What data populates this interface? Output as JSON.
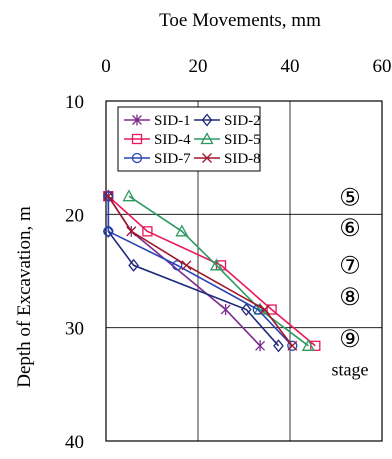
{
  "chart_data": {
    "type": "line",
    "title": "",
    "xlabel": "Toe Movements, mm",
    "ylabel": "Depth of Excavation, m",
    "xlim": [
      0,
      60
    ],
    "ylim": [
      40,
      10
    ],
    "y_inverted": true,
    "x_axis_position": "top",
    "grid": true,
    "legend_position": "top-left inside",
    "x_ticks": [
      {
        "value": 0,
        "label": "0"
      },
      {
        "value": 20,
        "label": "20"
      },
      {
        "value": 40,
        "label": "40"
      },
      {
        "value": 60,
        "label": "60"
      }
    ],
    "y_ticks": [
      {
        "value": 10,
        "label": "10"
      },
      {
        "value": 20,
        "label": "20"
      },
      {
        "value": 30,
        "label": "30"
      },
      {
        "value": 40,
        "label": "40"
      }
    ],
    "series": [
      {
        "name": "SID-1",
        "color": "#7B2D8E",
        "marker": "asterisk",
        "x": [
          0.5,
          5.5,
          26.0,
          33.5
        ],
        "y": [
          18.4,
          21.5,
          28.4,
          31.6
        ]
      },
      {
        "name": "SID-2",
        "color": "#1F2A7A",
        "marker": "diamond",
        "x": [
          0.5,
          0.5,
          6.0,
          30.5,
          37.5
        ],
        "y": [
          18.4,
          21.5,
          24.5,
          28.4,
          31.6
        ]
      },
      {
        "name": "SID-4",
        "color": "#E8185A",
        "marker": "square",
        "x": [
          0.5,
          9.0,
          25.0,
          36.0,
          45.5
        ],
        "y": [
          18.4,
          21.5,
          24.5,
          28.4,
          31.6
        ]
      },
      {
        "name": "SID-5",
        "color": "#2E9A62",
        "marker": "triangle",
        "x": [
          5.0,
          16.5,
          24.0,
          33.5,
          44.0
        ],
        "y": [
          18.4,
          21.5,
          24.5,
          28.4,
          31.6
        ]
      },
      {
        "name": "SID-7",
        "color": "#2743B5",
        "marker": "circle",
        "x": [
          0.5,
          0.5,
          15.5,
          33.0,
          40.5
        ],
        "y": [
          18.4,
          21.5,
          24.5,
          28.4,
          31.6
        ]
      },
      {
        "name": "SID-8",
        "color": "#A0162B",
        "marker": "x",
        "x": [
          0.5,
          5.5,
          17.5,
          34.5,
          40.5
        ],
        "y": [
          18.4,
          21.5,
          24.5,
          28.4,
          31.6
        ]
      }
    ],
    "legend_order": [
      "SID-1",
      "SID-2",
      "SID-4",
      "SID-5",
      "SID-7",
      "SID-8"
    ],
    "annotations": [
      {
        "text": "⑤",
        "depth": 18.5
      },
      {
        "text": "⑥",
        "depth": 21.2
      },
      {
        "text": "⑦",
        "depth": 24.5
      },
      {
        "text": "⑧",
        "depth": 27.3
      },
      {
        "text": "⑨",
        "depth": 31.0
      },
      {
        "text": "stage",
        "depth": 33.7
      }
    ]
  }
}
